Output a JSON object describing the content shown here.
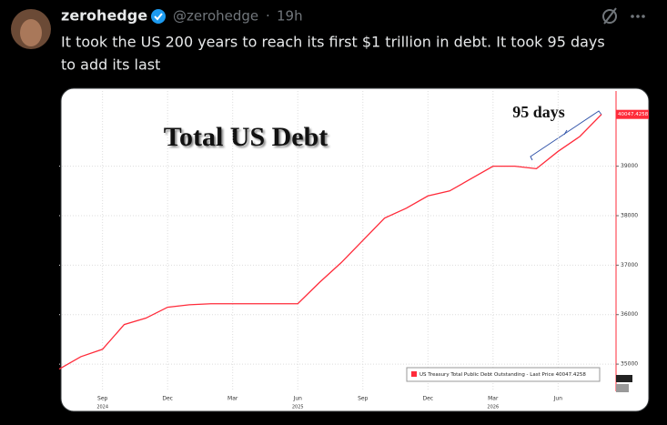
{
  "tweet": {
    "author": "zerohedge",
    "handle": "@zerohedge",
    "time": "19h",
    "text_lines": [
      "It took the US 200 years to reach its first $1 trillion in debt. It took 95 days",
      "to add its last"
    ]
  },
  "chart_data": {
    "type": "line",
    "title": "Total US Debt",
    "annotation": "95 days",
    "x": [
      "2024-07",
      "2024-08",
      "2024-09",
      "2024-10",
      "2024-11",
      "2024-12",
      "2025-01",
      "2025-02",
      "2025-03",
      "2025-04",
      "2025-05",
      "2025-06",
      "2025-07",
      "2025-08",
      "2025-09",
      "2025-10",
      "2025-11",
      "2025-12",
      "2026-01",
      "2026-02",
      "2026-03",
      "2026-04",
      "2026-05",
      "2026-06",
      "2026-07",
      "2026-08"
    ],
    "series": [
      {
        "name": "US Treasury Total Public Debt Outstanding - Last Price 40047.4258",
        "color": "#ff2b3a",
        "values": [
          34900,
          35150,
          35300,
          35800,
          35930,
          36150,
          36200,
          36220,
          36220,
          36220,
          36220,
          36220,
          36650,
          37050,
          37500,
          37950,
          38150,
          38400,
          38500,
          38750,
          39000,
          39000,
          38950,
          39300,
          39600,
          40047.4258
        ]
      }
    ],
    "xticks": [
      {
        "value": "2024-09",
        "label": "Sep",
        "year": "2024"
      },
      {
        "value": "2024-12",
        "label": "Dec"
      },
      {
        "value": "2025-03",
        "label": "Mar"
      },
      {
        "value": "2025-06",
        "label": "Jun",
        "year": "2025"
      },
      {
        "value": "2025-09",
        "label": "Sep"
      },
      {
        "value": "2025-12",
        "label": "Dec"
      },
      {
        "value": "2026-03",
        "label": "Mar",
        "year": "2026"
      },
      {
        "value": "2026-06",
        "label": "Jun"
      }
    ],
    "ylim": [
      34450,
      40520
    ],
    "yticks": [
      35000,
      36000,
      37000,
      38000,
      39000
    ],
    "grid": true
  }
}
